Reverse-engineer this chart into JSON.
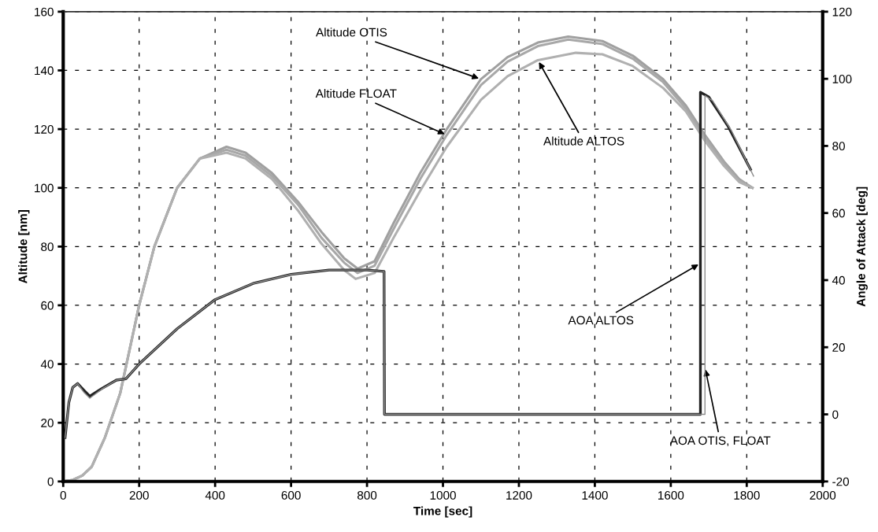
{
  "chart_data": {
    "type": "line",
    "xlabel": "Time [sec]",
    "ylabel": "Altitude [nm]",
    "y2label": "Angle of Attack [deg]",
    "xlim": [
      0,
      2000
    ],
    "xticks": [
      0,
      200,
      400,
      600,
      800,
      1000,
      1200,
      1400,
      1600,
      1800,
      2000
    ],
    "ylim": [
      0,
      160
    ],
    "yticks": [
      0,
      20,
      40,
      60,
      80,
      100,
      120,
      140,
      160
    ],
    "y2lim": [
      -20,
      120
    ],
    "y2ticks": [
      -20,
      0,
      20,
      40,
      60,
      80,
      100,
      120
    ],
    "grid": true,
    "line_style": "solid",
    "marker": "none",
    "series": [
      {
        "color": "#a0a0a0",
        "x": [
          0,
          25,
          50,
          75,
          110,
          150,
          200,
          240,
          300,
          360,
          430,
          480,
          550,
          620,
          680,
          740,
          775,
          820,
          870,
          940,
          1010,
          1100,
          1170,
          1250,
          1330,
          1420,
          1500,
          1580,
          1640,
          1690,
          1740,
          1780,
          1815
        ],
        "values": [
          0,
          0.5,
          2,
          5,
          15,
          30,
          60,
          80,
          100,
          110,
          114,
          112,
          105,
          95,
          85,
          76,
          72.5,
          75,
          88,
          105,
          120,
          137,
          144.5,
          149.5,
          151.5,
          150,
          145,
          137,
          128,
          118,
          109,
          103,
          100
        ]
      },
      {
        "color": "#a8a8a8",
        "x": [
          0,
          25,
          50,
          75,
          110,
          150,
          200,
          240,
          300,
          360,
          430,
          480,
          550,
          620,
          680,
          740,
          775,
          820,
          870,
          940,
          1010,
          1100,
          1170,
          1250,
          1330,
          1420,
          1500,
          1580,
          1640,
          1690,
          1740,
          1780,
          1815
        ],
        "values": [
          0,
          0.5,
          2,
          5,
          15,
          30,
          60,
          80,
          100,
          110,
          113,
          111,
          104,
          94,
          83,
          74.5,
          71,
          73.5,
          86,
          103,
          118,
          135,
          143,
          148.3,
          150.5,
          149,
          144,
          136,
          127,
          117,
          108.5,
          102.5,
          100
        ]
      },
      {
        "color": "#b0b0b0",
        "x": [
          0,
          25,
          50,
          75,
          110,
          150,
          200,
          240,
          300,
          360,
          430,
          480,
          550,
          620,
          680,
          740,
          770,
          820,
          870,
          940,
          1010,
          1100,
          1170,
          1250,
          1350,
          1420,
          1500,
          1580,
          1640,
          1690,
          1740,
          1780,
          1815
        ],
        "values": [
          0,
          0.5,
          2,
          5,
          15,
          30,
          60,
          80,
          100,
          110,
          112,
          110,
          103,
          92,
          81,
          72,
          69,
          71,
          83,
          99,
          114,
          130,
          138,
          143.5,
          146,
          145.5,
          141.5,
          134,
          126,
          116,
          107.5,
          102,
          100
        ]
      },
      {
        "color": "#222222",
        "axis": "y2",
        "x": [
          5,
          15,
          25,
          38,
          55,
          70,
          100,
          140,
          165,
          200,
          300,
          400,
          500,
          600,
          700,
          800,
          845,
          846,
          1678,
          1678,
          1700,
          1750,
          1810
        ],
        "values": [
          -6.9,
          3.6,
          8,
          9.2,
          7.1,
          5.4,
          7.6,
          10.2,
          10.6,
          15,
          25.5,
          34.2,
          39,
          41.7,
          43,
          43,
          42.6,
          0,
          0,
          96,
          94.6,
          86,
          73
        ]
      },
      {
        "color": "#8c8c8c",
        "axis": "y2",
        "x": [
          5,
          15,
          25,
          38,
          55,
          70,
          100,
          140,
          165,
          200,
          300,
          400,
          500,
          600,
          700,
          800,
          845,
          846,
          1690,
          1690,
          1710,
          1760,
          1818
        ],
        "values": [
          -6.9,
          3.6,
          8,
          9.2,
          6.5,
          4.8,
          7.4,
          10.2,
          10.6,
          15,
          25.5,
          34.2,
          39,
          41.7,
          43,
          43,
          42.6,
          0,
          0,
          95,
          93.5,
          84.5,
          71
        ]
      }
    ],
    "annotations": [
      {
        "text": "Altitude OTIS",
        "x": 1100,
        "y": 137
      },
      {
        "text": "Altitude FLOAT",
        "x": 1010,
        "y": 118
      },
      {
        "text": "Altitude ALTOS",
        "x": 1250,
        "y": 143.5
      },
      {
        "text": "AOA ALTOS",
        "x": 1678,
        "y": 74.3
      },
      {
        "text": "AOA OTIS, FLOAT",
        "x": 1690,
        "y": 38.9
      }
    ]
  }
}
